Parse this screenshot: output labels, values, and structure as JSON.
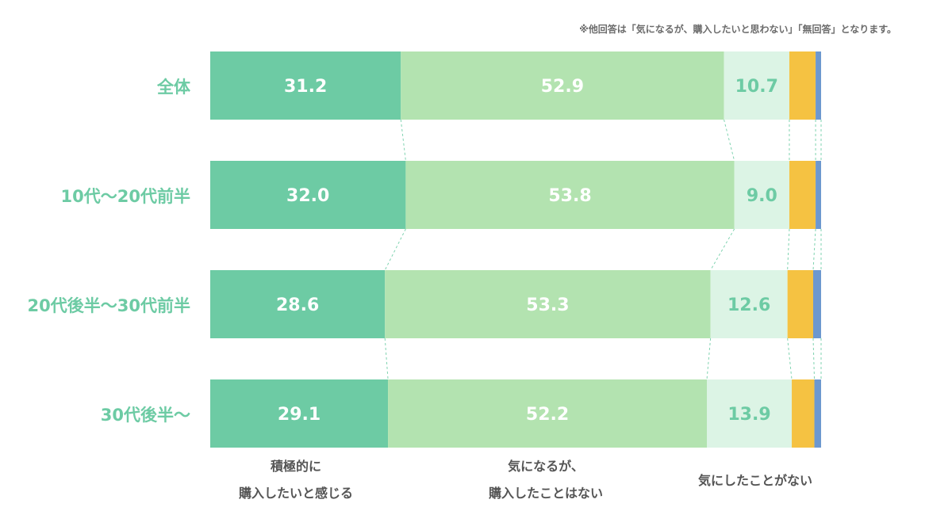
{
  "note": "※他回答は「気になるが、購入したいと思わない」「無回答」となります。",
  "chart_data": {
    "type": "bar",
    "stacked": true,
    "orientation": "horizontal",
    "unit": "%",
    "categories": [
      "全体",
      "10代〜20代前半",
      "20代後半〜30代前半",
      "30代後半〜"
    ],
    "series": [
      {
        "name": "積極的に購入したいと感じる",
        "color": "#6dcba4",
        "label_color": "#ffffff",
        "values": [
          31.2,
          32.0,
          28.6,
          29.1
        ],
        "labels": [
          "31.2",
          "32.0",
          "28.6",
          "29.1"
        ]
      },
      {
        "name": "気になるが、購入したことはない",
        "color": "#b3e3b0",
        "label_color": "#ffffff",
        "values": [
          52.9,
          53.8,
          53.3,
          52.2
        ],
        "labels": [
          "52.9",
          "53.8",
          "53.3",
          "52.2"
        ]
      },
      {
        "name": "気にしたことがない",
        "color": "#dcf4e5",
        "label_color": "#6dcba4",
        "values": [
          10.7,
          9.0,
          12.6,
          13.9
        ],
        "labels": [
          "10.7",
          "9.0",
          "12.6",
          "13.9"
        ]
      },
      {
        "name": "気になるが、購入したいと思わない",
        "color": "#f5c242",
        "values": [
          4.3,
          4.3,
          4.2,
          3.7
        ]
      },
      {
        "name": "無回答",
        "color": "#6d98cf",
        "values": [
          0.9,
          0.9,
          1.3,
          1.1
        ]
      }
    ],
    "legend": [
      {
        "lines": [
          "積極的に",
          "購入したいと感じる"
        ]
      },
      {
        "lines": [
          "気になるが、",
          "購入したことはない"
        ]
      },
      {
        "lines": [
          "気にしたことがない"
        ]
      }
    ],
    "connector_color": "#7fd3b0",
    "xlim": [
      0,
      100
    ]
  }
}
